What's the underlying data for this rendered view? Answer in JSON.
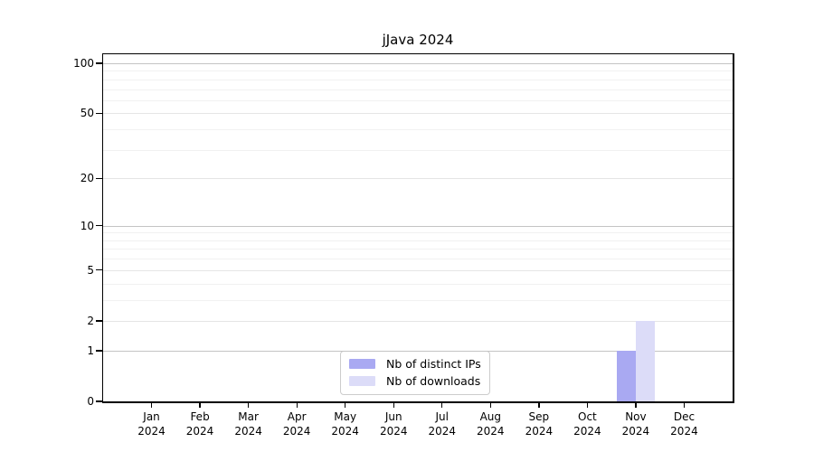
{
  "chart_data": {
    "type": "bar",
    "title": "jJava 2024",
    "categories": [
      "Jan",
      "Feb",
      "Mar",
      "Apr",
      "May",
      "Jun",
      "Jul",
      "Aug",
      "Sep",
      "Oct",
      "Nov",
      "Dec"
    ],
    "year": "2024",
    "series": [
      {
        "name": "Nb of distinct IPs",
        "color": "#a9a9f2",
        "values": [
          0,
          0,
          0,
          0,
          0,
          0,
          0,
          0,
          0,
          0,
          1,
          0
        ]
      },
      {
        "name": "Nb of downloads",
        "color": "#dcdcf8",
        "values": [
          0,
          0,
          0,
          0,
          0,
          0,
          0,
          0,
          0,
          0,
          2,
          0
        ]
      }
    ],
    "xlabel": "",
    "ylabel": "",
    "yscale": "log1p",
    "ylim": [
      0,
      115
    ],
    "yticks": [
      0,
      1,
      2,
      5,
      10,
      20,
      50,
      100
    ],
    "decade_ticks": [
      1,
      10,
      100
    ],
    "minor_yticks": [
      3,
      4,
      6,
      7,
      8,
      9,
      30,
      40,
      60,
      70,
      80,
      90
    ],
    "grid": "horizontal",
    "legend_position": "lower center",
    "colors": {
      "decade_gridline": "#c4c4c4",
      "major_gridline": "#e5e5e5",
      "minor_gridline": "#f1f1f1",
      "spine": "#000000",
      "legend_border": "#cccccc"
    }
  }
}
